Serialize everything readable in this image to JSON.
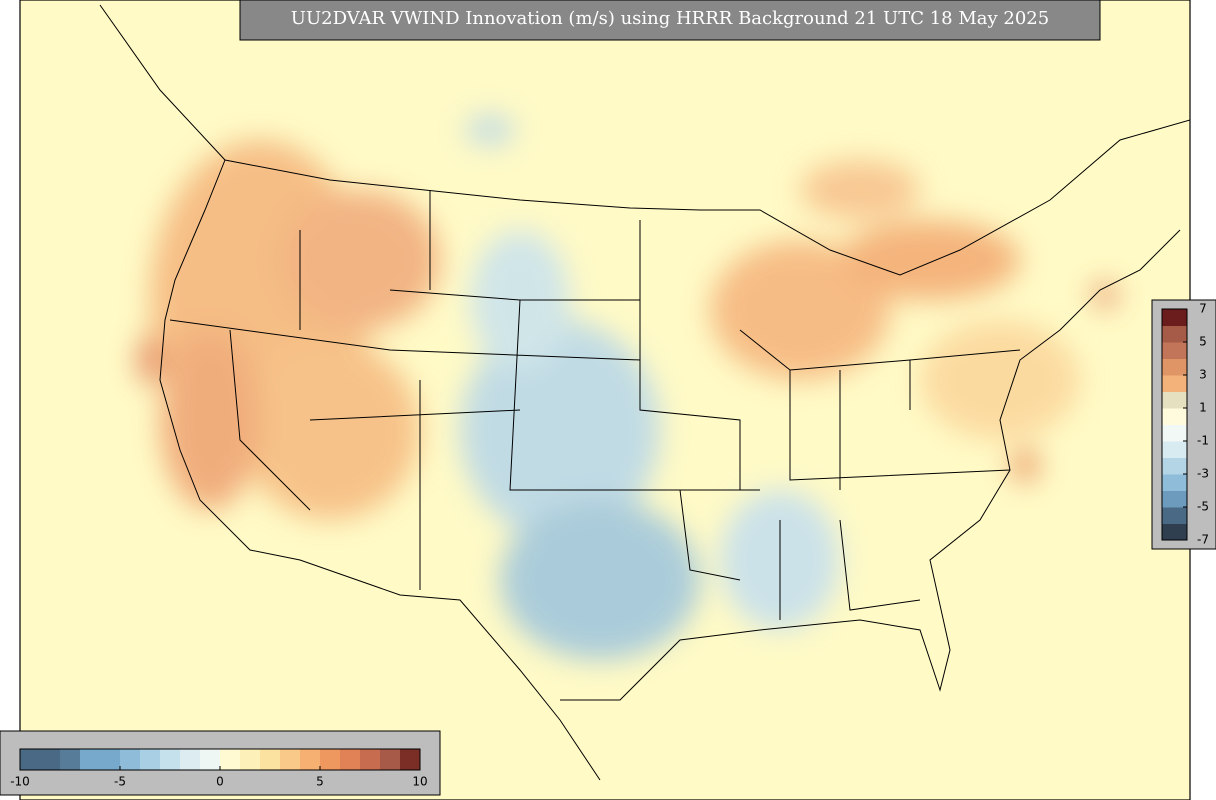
{
  "title": "UU2DVAR VWIND Innovation (m/s) using HRRR Background 21 UTC 18 May 2025",
  "colorbars": [
    {
      "orientation": "horizontal",
      "lim": [
        -10,
        10
      ],
      "ticks": [
        -10,
        -5,
        0,
        5,
        10
      ],
      "colors": [
        "#4a6985",
        "#4a6985",
        "#577c99",
        "#76a9cc",
        "#76a9cc",
        "#8ebcd9",
        "#a9cfe4",
        "#c4e1ec",
        "#dcecf1",
        "#eef7f4",
        "#fffad2",
        "#fdf0b8",
        "#fce2a0",
        "#f9c989",
        "#f5b072",
        "#ee9860",
        "#e08256",
        "#c76c4f",
        "#a85a48",
        "#7a2e26"
      ]
    },
    {
      "orientation": "vertical",
      "lim": [
        -7,
        7
      ],
      "ticks": [
        7,
        5,
        3,
        1,
        -1,
        -3,
        -5,
        -7
      ],
      "colors": [
        "#2f3f4f",
        "#4a6985",
        "#6d9bbd",
        "#8ebcd9",
        "#b3d5e6",
        "#d7ebf1",
        "#f2f8f6",
        "#fffbdc",
        "#e4e0c0",
        "#f2b27a",
        "#e09566",
        "#c27558",
        "#a65a48",
        "#6b1c1c"
      ]
    }
  ]
}
